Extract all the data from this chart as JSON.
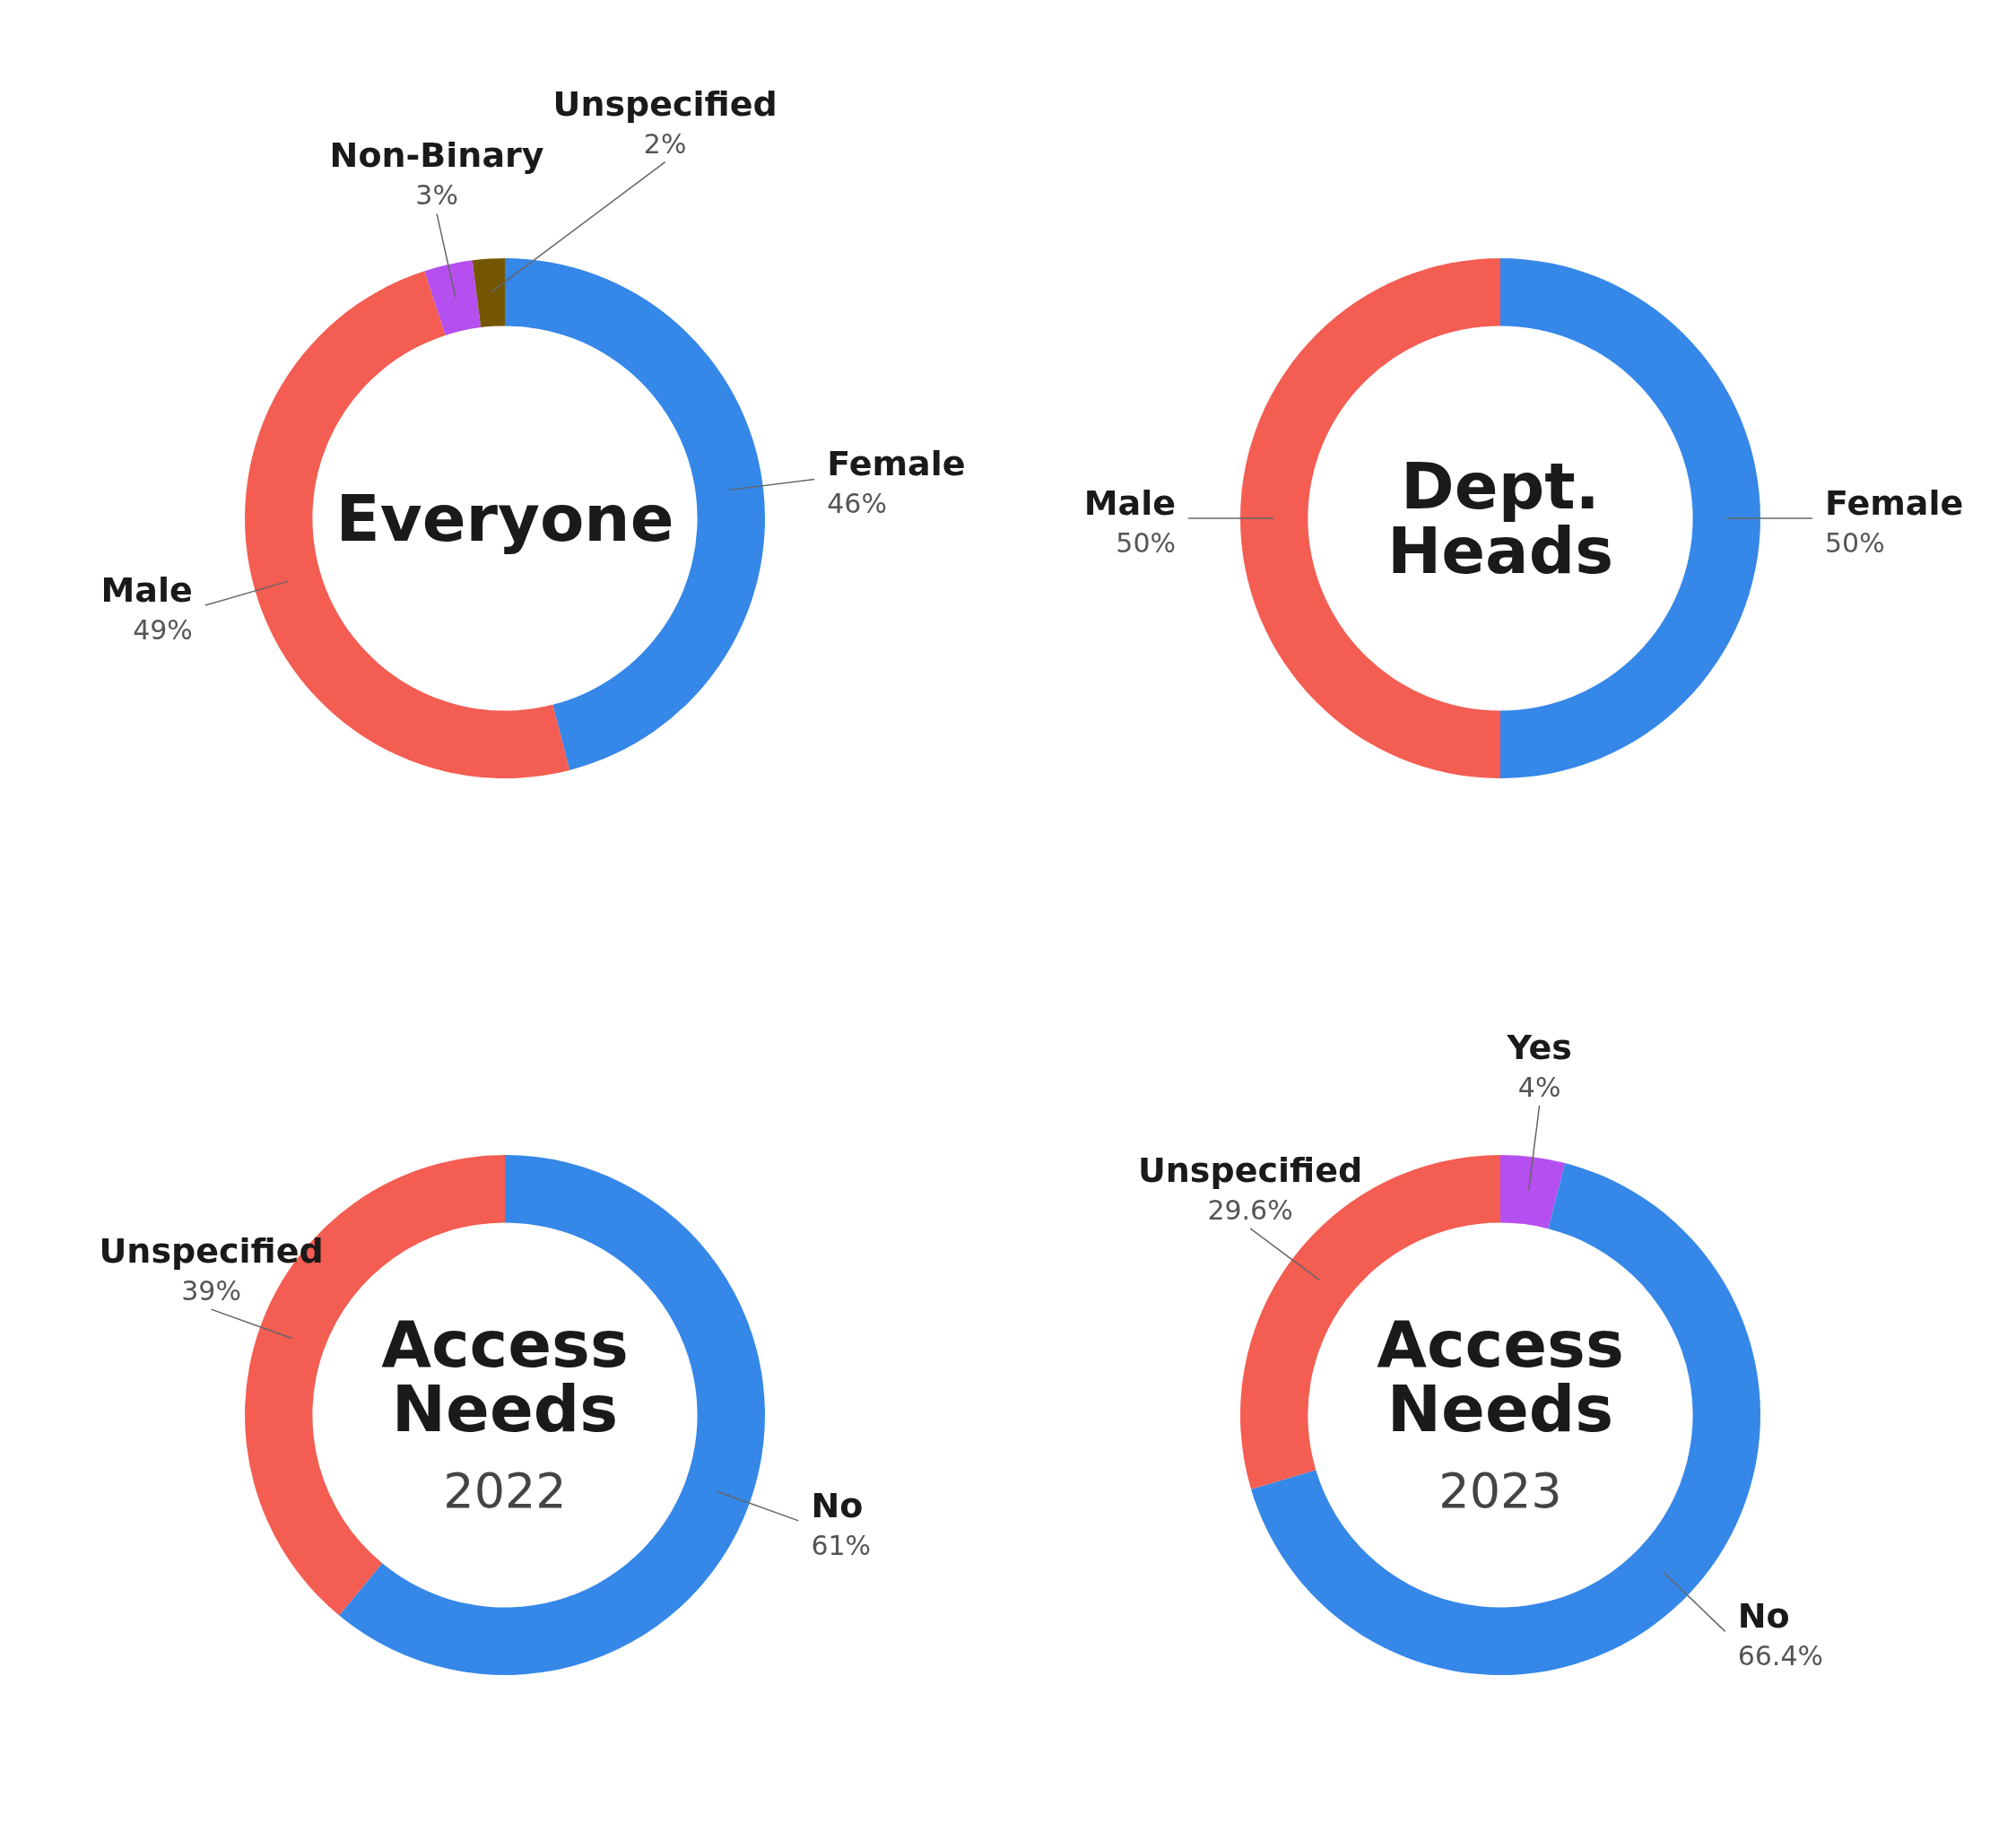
{
  "chart_data": [
    {
      "type": "donut",
      "title": "Everyone",
      "categories": [
        "Female",
        "Male",
        "Non-Binary",
        "Unspecified"
      ],
      "values": [
        46,
        49,
        3,
        2
      ],
      "colors": [
        "#3587e8",
        "#f45d52",
        "#b64ff0",
        "#755600"
      ],
      "value_labels": [
        "46%",
        "49%",
        "3%",
        "2%"
      ]
    },
    {
      "type": "donut",
      "title": "Dept. Heads",
      "categories": [
        "Female",
        "Male"
      ],
      "values": [
        50,
        50
      ],
      "colors": [
        "#3587e8",
        "#f45d52"
      ],
      "value_labels": [
        "50%",
        "50%"
      ]
    },
    {
      "type": "donut",
      "title": "Access Needs",
      "subtitle": "2022",
      "categories": [
        "No",
        "Unspecified"
      ],
      "values": [
        61,
        39
      ],
      "colors": [
        "#3587e8",
        "#f45d52"
      ],
      "value_labels": [
        "61%",
        "39%"
      ]
    },
    {
      "type": "donut",
      "title": "Access Needs",
      "subtitle": "2023",
      "categories": [
        "Yes",
        "No",
        "Unspecified"
      ],
      "values": [
        4,
        66.4,
        29.6
      ],
      "colors": [
        "#b64ff0",
        "#3587e8",
        "#f45d52"
      ],
      "value_labels": [
        "4%",
        "66.4%",
        "29.6%"
      ]
    }
  ]
}
